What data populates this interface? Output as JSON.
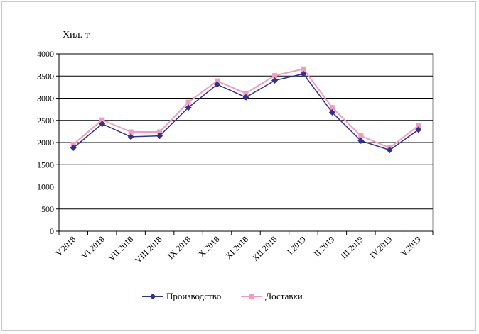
{
  "chart_data": {
    "type": "line",
    "ylabel": "Хил. т",
    "ylim": [
      0,
      4000
    ],
    "yticks": [
      0,
      500,
      1000,
      1500,
      2000,
      2500,
      3000,
      3500,
      4000
    ],
    "categories": [
      "V.2018",
      "VI.2018",
      "VII.2018",
      "VIII.2018",
      "IX.2018",
      "X.2018",
      "XI.2018",
      "XII.2018",
      "I.2019",
      "II.2019",
      "III.2019",
      "IV.2019",
      "V.2019"
    ],
    "series": [
      {
        "name": "Производство",
        "color": "#2e3192",
        "marker": "diamond",
        "values": [
          1880,
          2420,
          2130,
          2150,
          2790,
          3310,
          3020,
          3400,
          3550,
          2680,
          2040,
          1830,
          2290
        ]
      },
      {
        "name": "Доставки",
        "color": "#f49ac1",
        "marker": "square",
        "values": [
          1960,
          2510,
          2240,
          2240,
          2910,
          3390,
          3110,
          3510,
          3660,
          2790,
          2150,
          1880,
          2380
        ]
      }
    ],
    "grid": true,
    "legend_position": "bottom"
  }
}
